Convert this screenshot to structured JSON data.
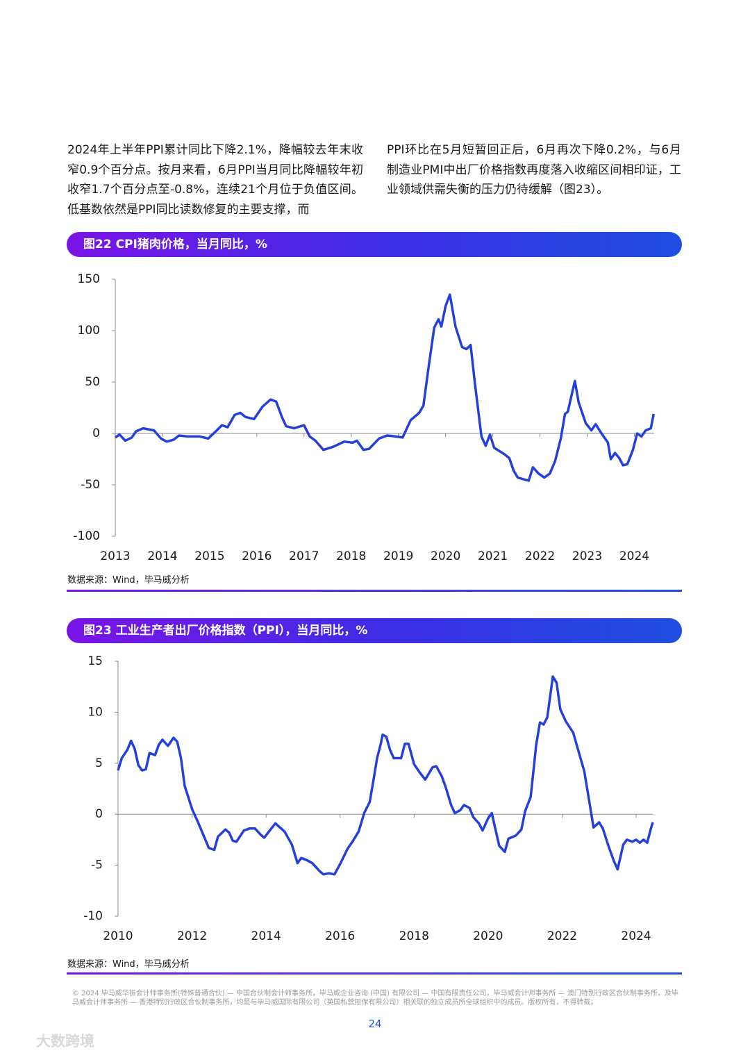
{
  "paragraphs": {
    "left": "2024年上半年PPI累计同比下降2.1%，降幅较去年末收窄0.9个百分点。按月来看，6月PPI当月同比降幅较年初收窄1.7个百分点至-0.8%，连续21个月位于负值区间。低基数依然是PPI同比读数修复的主要支撑，而",
    "right": "PPI环比在5月短暂回正后，6月再次下降0.2%，与6月制造业PMI中出厂价格指数再度落入收缩区间相印证，工业领域供需失衡的压力仍待缓解（图23）。"
  },
  "chart_data": [
    {
      "type": "line",
      "title": "图22 CPI猪肉价格，当月同比，%",
      "source": "数据来源：Wind，毕马威分析",
      "xlim": [
        2013,
        2024.42
      ],
      "xticks": [
        2013,
        2014,
        2015,
        2016,
        2017,
        2018,
        2019,
        2020,
        2021,
        2022,
        2023,
        2024
      ],
      "ylim": [
        -100,
        150
      ],
      "yticks": [
        -100,
        -50,
        0,
        50,
        100,
        150
      ],
      "x": [
        2013.0,
        2013.09,
        2013.21,
        2013.35,
        2013.44,
        2013.59,
        2013.82,
        2013.97,
        2014.09,
        2014.24,
        2014.35,
        2014.53,
        2014.79,
        2014.97,
        2015.15,
        2015.26,
        2015.38,
        2015.53,
        2015.65,
        2015.76,
        2015.94,
        2016.12,
        2016.29,
        2016.41,
        2016.53,
        2016.62,
        2016.79,
        2017.0,
        2017.12,
        2017.24,
        2017.41,
        2017.62,
        2017.85,
        2018.03,
        2018.12,
        2018.26,
        2018.38,
        2018.59,
        2018.76,
        2018.94,
        2019.09,
        2019.26,
        2019.44,
        2019.53,
        2019.65,
        2019.76,
        2019.85,
        2019.91,
        2020.0,
        2020.09,
        2020.21,
        2020.35,
        2020.44,
        2020.53,
        2020.62,
        2020.76,
        2020.85,
        2020.94,
        2021.03,
        2021.24,
        2021.35,
        2021.44,
        2021.53,
        2021.68,
        2021.76,
        2021.85,
        2021.97,
        2022.09,
        2022.21,
        2022.32,
        2022.44,
        2022.53,
        2022.59,
        2022.74,
        2022.82,
        2022.97,
        2023.09,
        2023.18,
        2023.29,
        2023.44,
        2023.5,
        2023.59,
        2023.68,
        2023.76,
        2023.85,
        2023.97,
        2024.06,
        2024.15,
        2024.24,
        2024.35,
        2024.41
      ],
      "series": [
        {
          "color": "#2540d9",
          "values": [
            -4,
            -1,
            -7,
            -4,
            2,
            5,
            3,
            -5,
            -8,
            -6,
            -2,
            -3,
            -3,
            -5,
            3,
            8,
            6,
            18,
            20,
            16,
            14,
            26,
            33,
            31,
            16,
            7,
            5,
            8,
            -3,
            -7,
            -16,
            -13,
            -8,
            -9,
            -7,
            -16,
            -15,
            -5,
            -2,
            -3,
            -4,
            13,
            20,
            27,
            68,
            103,
            111,
            104,
            124,
            135,
            104,
            84,
            82,
            86,
            49,
            -3,
            -12,
            -1,
            -14,
            -20,
            -24,
            -36,
            -43,
            -45,
            -46,
            -33,
            -39,
            -43,
            -39,
            -27,
            -5,
            19,
            21,
            51,
            30,
            10,
            3,
            9,
            1,
            -9,
            -25,
            -19,
            -24,
            -31,
            -30,
            -16,
            0,
            -3,
            3,
            5,
            19
          ]
        }
      ]
    },
    {
      "type": "line",
      "title": "图23 工业生产者出厂价格指数（PPI），当月同比，%",
      "source": "数据来源：Wind，毕马威分析",
      "xlim": [
        2010,
        2024.45
      ],
      "xticks": [
        2010,
        2012,
        2014,
        2016,
        2018,
        2020,
        2022,
        2024
      ],
      "ylim": [
        -10,
        15
      ],
      "yticks": [
        -10,
        -5,
        0,
        5,
        10,
        15
      ],
      "x": [
        2010.0,
        2010.1,
        2010.25,
        2010.35,
        2010.45,
        2010.55,
        2010.65,
        2010.75,
        2010.85,
        2011.0,
        2011.1,
        2011.2,
        2011.35,
        2011.5,
        2011.6,
        2011.7,
        2011.8,
        2012.0,
        2012.15,
        2012.3,
        2012.45,
        2012.6,
        2012.7,
        2012.9,
        2013.0,
        2013.1,
        2013.2,
        2013.4,
        2013.55,
        2013.7,
        2013.85,
        2013.95,
        2014.1,
        2014.25,
        2014.5,
        2014.7,
        2014.85,
        2014.95,
        2015.1,
        2015.25,
        2015.45,
        2015.55,
        2015.7,
        2015.85,
        2016.0,
        2016.2,
        2016.35,
        2016.5,
        2016.65,
        2016.8,
        2016.9,
        2017.0,
        2017.1,
        2017.15,
        2017.25,
        2017.35,
        2017.45,
        2017.65,
        2017.75,
        2017.85,
        2018.0,
        2018.15,
        2018.3,
        2018.5,
        2018.6,
        2018.75,
        2018.85,
        2019.0,
        2019.1,
        2019.25,
        2019.35,
        2019.5,
        2019.6,
        2019.75,
        2019.85,
        2020.0,
        2020.1,
        2020.2,
        2020.3,
        2020.45,
        2020.55,
        2020.75,
        2020.9,
        2021.0,
        2021.15,
        2021.3,
        2021.4,
        2021.5,
        2021.6,
        2021.75,
        2021.85,
        2021.95,
        2022.1,
        2022.3,
        2022.45,
        2022.6,
        2022.75,
        2022.85,
        2023.0,
        2023.1,
        2023.25,
        2023.4,
        2023.5,
        2023.65,
        2023.75,
        2023.9,
        2024.0,
        2024.1,
        2024.2,
        2024.3,
        2024.4,
        2024.45
      ],
      "series": [
        {
          "color": "#2540d9",
          "values": [
            4.3,
            5.5,
            6.3,
            7.2,
            6.4,
            4.8,
            4.3,
            4.4,
            6.0,
            5.8,
            6.8,
            7.3,
            6.7,
            7.5,
            7.1,
            5.5,
            2.8,
            0.5,
            -0.7,
            -2.0,
            -3.3,
            -3.5,
            -2.2,
            -1.5,
            -1.8,
            -2.6,
            -2.7,
            -1.6,
            -1.4,
            -1.4,
            -2.0,
            -2.3,
            -1.6,
            -0.9,
            -1.7,
            -3.0,
            -4.8,
            -4.3,
            -4.5,
            -4.8,
            -5.6,
            -5.9,
            -5.8,
            -5.9,
            -4.9,
            -3.4,
            -2.6,
            -1.7,
            0.1,
            1.2,
            3.3,
            5.5,
            6.9,
            7.8,
            7.6,
            6.3,
            5.5,
            5.5,
            6.9,
            6.9,
            4.9,
            4.1,
            3.4,
            4.6,
            4.7,
            3.7,
            2.7,
            0.9,
            0.1,
            0.4,
            0.9,
            0.6,
            -0.3,
            -0.9,
            -1.6,
            -0.4,
            0.1,
            -1.5,
            -3.1,
            -3.7,
            -2.4,
            -2.1,
            -1.5,
            0.3,
            1.7,
            6.8,
            9.0,
            8.8,
            9.5,
            13.5,
            12.9,
            10.3,
            9.1,
            8.0,
            6.1,
            4.2,
            0.9,
            -1.3,
            -0.8,
            -1.4,
            -3.1,
            -4.6,
            -5.4,
            -3.0,
            -2.5,
            -2.7,
            -2.5,
            -2.8,
            -2.5,
            -2.8,
            -1.4,
            -0.8
          ]
        }
      ]
    }
  ],
  "footer": "© 2024 毕马威华振会计师事务所(特殊普通合伙) — 中国合伙制会计师事务所，毕马威企业咨询 (中国) 有限公司 — 中国有限责任公司，毕马威会计师事务所 — 澳门特别行政区合伙制事务所，及毕马威会计师事务所 — 香港特别行政区合伙制事务所，均是与毕马威国际有限公司（英国私营担保有限公司）相关联的独立成员所全球组织中的成员。版权所有，不得转载。",
  "page_number": 24,
  "watermark": "大数跨境"
}
